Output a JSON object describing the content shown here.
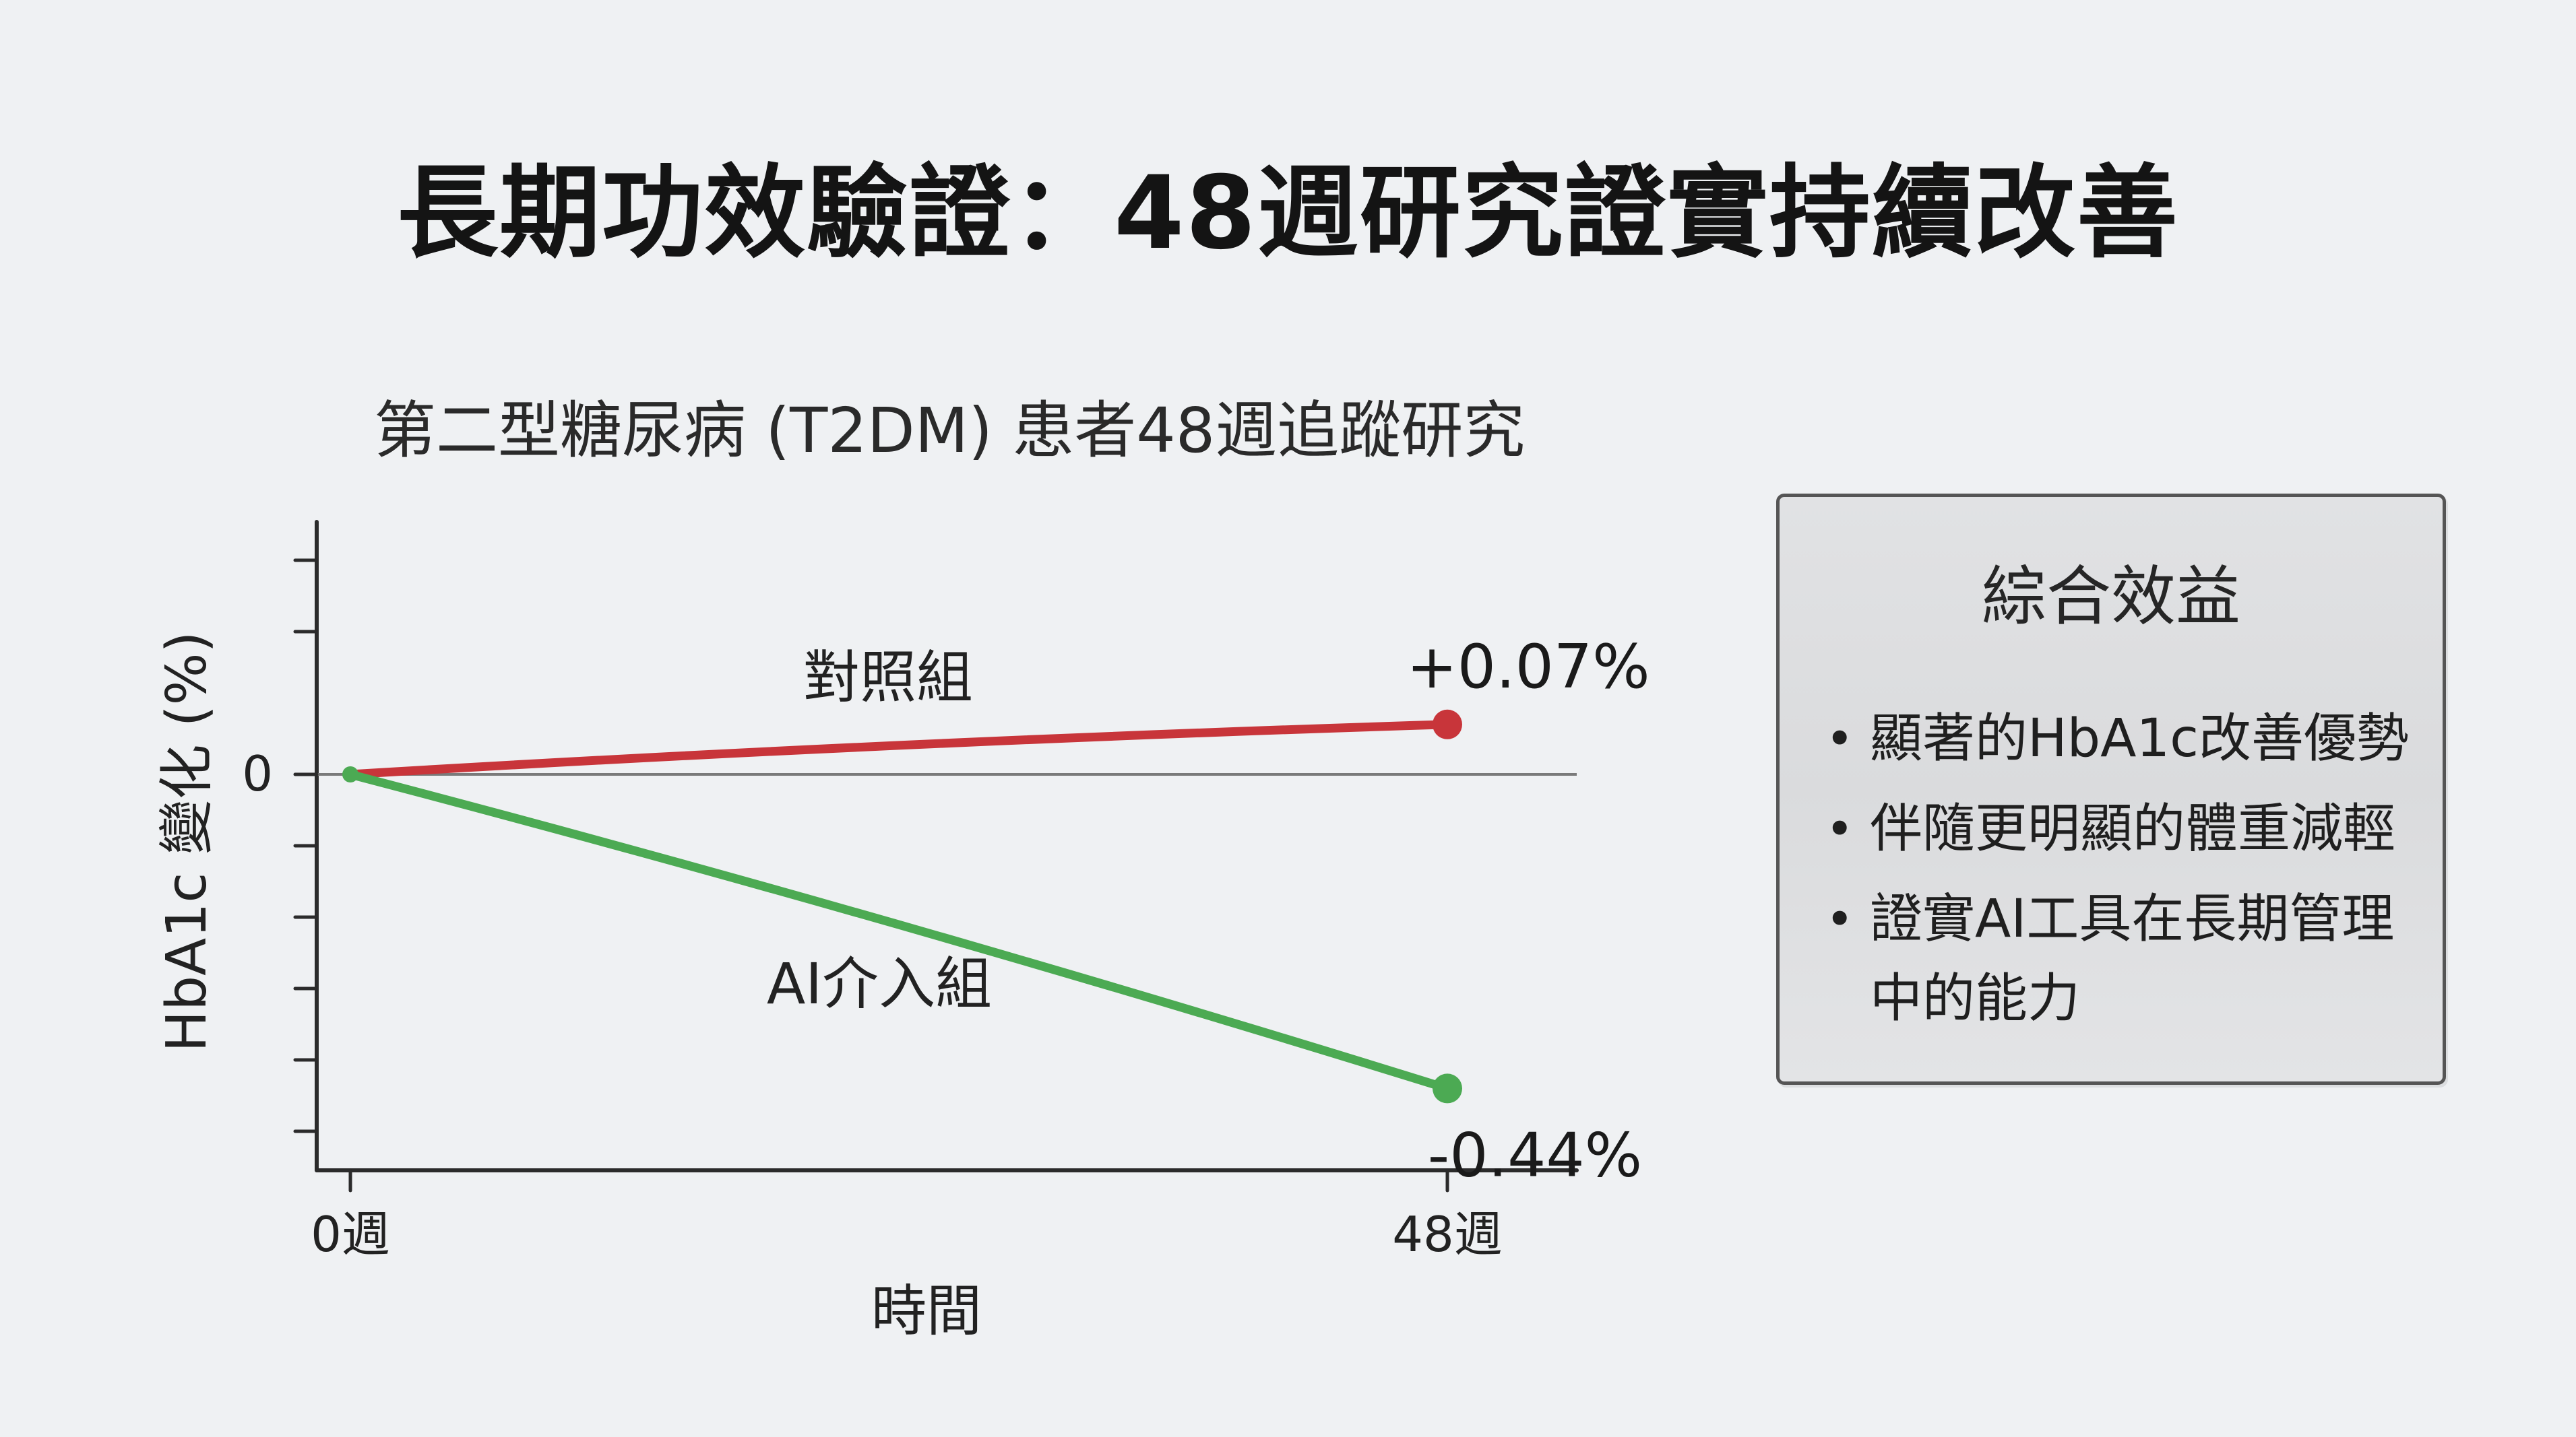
{
  "title": "長期功效驗證：48週研究證實持續改善",
  "chart_data": {
    "type": "line",
    "title": "第二型糖尿病 (T2DM) 患者48週追蹤研究",
    "xlabel": "時間",
    "ylabel": "HbA1c 變化 (%)",
    "x": [
      "0週",
      "48週"
    ],
    "y_tick_labels": [
      "0"
    ],
    "ylim": [
      -0.6,
      0.4
    ],
    "grid": false,
    "legend": "inline labels",
    "series": [
      {
        "name": "對照組",
        "color": "#c8353a",
        "x": [
          0,
          48
        ],
        "values": [
          0,
          0.07
        ],
        "end_label": "+0.07%"
      },
      {
        "name": "AI介入組",
        "color": "#4caa53",
        "x": [
          0,
          48
        ],
        "values": [
          0,
          -0.44
        ],
        "end_label": "-0.44%"
      }
    ]
  },
  "summary": {
    "title": "綜合效益",
    "items": [
      "顯著的HbA1c改善優勢",
      "伴隨更明顯的體重減輕",
      "證實AI工具在長期管理中的能力"
    ]
  }
}
